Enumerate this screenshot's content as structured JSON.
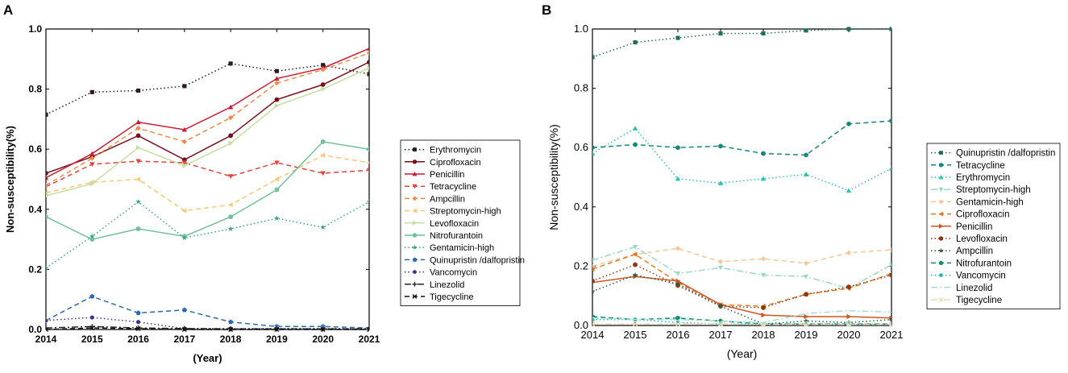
{
  "chart_data": [
    {
      "type": "line",
      "panel": "A",
      "title": "",
      "xlabel": "(Year)",
      "ylabel": "Non-susceptibility(%)",
      "x": [
        2014,
        2015,
        2016,
        2017,
        2018,
        2019,
        2020,
        2021
      ],
      "xticks": [
        "2014",
        "2015",
        "2016",
        "2017",
        "2018",
        "2019",
        "2020",
        "2021"
      ],
      "ylim": [
        0,
        1.0
      ],
      "yticks": [
        "0.0",
        "0.2",
        "0.4",
        "0.6",
        "0.8",
        "1.0"
      ],
      "legend_position": "right",
      "grid": false,
      "series": [
        {
          "name": "Erythromycin",
          "color": "#2b1a1a",
          "dash": "dot",
          "marker": "square",
          "values": [
            0.715,
            0.79,
            0.795,
            0.81,
            0.885,
            0.86,
            0.88,
            0.85
          ]
        },
        {
          "name": "Ciprofloxacin",
          "color": "#7a0f1c",
          "dash": "solid",
          "marker": "circle",
          "values": [
            0.52,
            0.575,
            0.645,
            0.565,
            0.645,
            0.765,
            0.815,
            0.89
          ]
        },
        {
          "name": "Penicillin",
          "color": "#c81e35",
          "dash": "solid",
          "marker": "triangle",
          "values": [
            0.505,
            0.585,
            0.69,
            0.665,
            0.74,
            0.835,
            0.87,
            0.935
          ]
        },
        {
          "name": "Tetracycline",
          "color": "#e2453a",
          "dash": "dash",
          "marker": "triangle-down",
          "values": [
            0.475,
            0.55,
            0.56,
            0.555,
            0.51,
            0.555,
            0.52,
            0.53
          ]
        },
        {
          "name": "Ampcillin",
          "color": "#ef8a4a",
          "dash": "dash",
          "marker": "diamond",
          "values": [
            0.48,
            0.57,
            0.67,
            0.625,
            0.705,
            0.82,
            0.865,
            0.92
          ]
        },
        {
          "name": "Streptomycin-high",
          "color": "#f7c77a",
          "dash": "dash",
          "marker": "left-triangle",
          "values": [
            0.455,
            0.49,
            0.5,
            0.395,
            0.415,
            0.5,
            0.58,
            0.555
          ]
        },
        {
          "name": "Levofloxacin",
          "color": "#c5dfa2",
          "dash": "solid",
          "marker": "right-triangle",
          "values": [
            0.445,
            0.485,
            0.605,
            0.545,
            0.62,
            0.745,
            0.8,
            0.87
          ]
        },
        {
          "name": "Nitrofurantoin",
          "color": "#72c19b",
          "dash": "solid",
          "marker": "hexagon",
          "values": [
            0.375,
            0.3,
            0.335,
            0.31,
            0.375,
            0.465,
            0.625,
            0.6
          ]
        },
        {
          "name": "Gentamicin-high",
          "color": "#3aa589",
          "dash": "dot",
          "marker": "star",
          "values": [
            0.205,
            0.31,
            0.425,
            0.305,
            0.335,
            0.37,
            0.34,
            0.425
          ]
        },
        {
          "name": "Quinupristin /dalfopristin",
          "color": "#2a6ab0",
          "dash": "dash",
          "marker": "pentagon",
          "values": [
            0.03,
            0.11,
            0.055,
            0.065,
            0.025,
            0.01,
            0.01,
            0.005
          ]
        },
        {
          "name": "Vancomycin",
          "color": "#3a3088",
          "dash": "dot",
          "marker": "circle-half",
          "values": [
            0.03,
            0.04,
            0.025,
            0.003,
            0.003,
            0.003,
            0.003,
            0.003
          ]
        },
        {
          "name": "Linezolid",
          "color": "#222222",
          "dash": "dashdot",
          "marker": "plus",
          "values": [
            0.005,
            0.01,
            0.005,
            0.003,
            0.002,
            0.002,
            0.002,
            0.002
          ]
        },
        {
          "name": "Tigecycline",
          "color": "#111111",
          "dash": "dash",
          "marker": "x",
          "values": [
            0.0,
            0.005,
            0.003,
            0.0,
            0.0,
            0.0,
            0.0,
            0.0
          ]
        }
      ]
    },
    {
      "type": "line",
      "panel": "B",
      "title": "",
      "xlabel": "(Year)",
      "ylabel": "Non-susceptibility(%)",
      "x": [
        2014,
        2015,
        2016,
        2017,
        2018,
        2019,
        2020,
        2021
      ],
      "xticks": [
        "2014",
        "2015",
        "2016",
        "2017",
        "2018",
        "2019",
        "2020",
        "2021"
      ],
      "ylim": [
        0,
        1.0
      ],
      "yticks": [
        "0.0",
        "0.2",
        "0.4",
        "0.6",
        "0.8",
        "1.0"
      ],
      "legend_position": "right",
      "grid": false,
      "series": [
        {
          "name": "Quinupristin /dalfopristin",
          "color": "#1f6e5a",
          "dash": "dot",
          "marker": "square",
          "values": [
            0.905,
            0.955,
            0.97,
            0.985,
            0.985,
            0.995,
            1.0,
            1.0
          ]
        },
        {
          "name": "Tetracycline",
          "color": "#17887a",
          "dash": "dash",
          "marker": "circle",
          "values": [
            0.6,
            0.61,
            0.6,
            0.605,
            0.58,
            0.575,
            0.68,
            0.69
          ]
        },
        {
          "name": "Erythromycin",
          "color": "#30c0b0",
          "dash": "dot",
          "marker": "triangle",
          "values": [
            0.58,
            0.665,
            0.495,
            0.48,
            0.495,
            0.51,
            0.455,
            0.53
          ]
        },
        {
          "name": "Streptomycin-high",
          "color": "#9dd8c6",
          "dash": "dashdot",
          "marker": "triangle-down",
          "values": [
            0.22,
            0.265,
            0.175,
            0.195,
            0.17,
            0.165,
            0.125,
            0.205
          ]
        },
        {
          "name": "Gentamicin-high",
          "color": "#f6c79b",
          "dash": "dash",
          "marker": "diamond",
          "values": [
            0.2,
            0.24,
            0.26,
            0.215,
            0.225,
            0.21,
            0.245,
            0.255
          ]
        },
        {
          "name": "Ciprofloxacin",
          "color": "#e07a22",
          "dash": "dash",
          "marker": "left-triangle",
          "values": [
            0.19,
            0.24,
            0.145,
            0.07,
            0.065,
            0.105,
            0.125,
            0.175
          ]
        },
        {
          "name": "Penicillin",
          "color": "#d0541f",
          "dash": "solid",
          "marker": "right-triangle",
          "values": [
            0.145,
            0.165,
            0.15,
            0.07,
            0.035,
            0.03,
            0.03,
            0.025
          ]
        },
        {
          "name": "Levofloxacin",
          "color": "#8a3b14",
          "dash": "dot",
          "marker": "hexagon",
          "values": [
            0.15,
            0.205,
            0.135,
            0.065,
            0.06,
            0.105,
            0.13,
            0.17
          ]
        },
        {
          "name": "Ampcillin",
          "color": "#2c5e3c",
          "dash": "dot",
          "marker": "star",
          "values": [
            0.115,
            0.17,
            0.14,
            0.065,
            0.005,
            0.015,
            0.01,
            0.02
          ]
        },
        {
          "name": "Nitrofurantoin",
          "color": "#138a72",
          "dash": "dash",
          "marker": "pentagon",
          "values": [
            0.03,
            0.02,
            0.025,
            0.015,
            0.005,
            0.005,
            0.005,
            0.005
          ]
        },
        {
          "name": "Vancomycin",
          "color": "#22b8a8",
          "dash": "dot",
          "marker": "circle-half",
          "values": [
            0.02,
            0.02,
            0.01,
            0.005,
            0.005,
            0.005,
            0.005,
            0.005
          ]
        },
        {
          "name": "Linezolid",
          "color": "#a6dfd2",
          "dash": "dashdot",
          "marker": "none",
          "values": [
            0.025,
            0.02,
            0.02,
            0.015,
            0.01,
            0.04,
            0.05,
            0.045
          ]
        },
        {
          "name": "Tigecycline",
          "color": "#f6d5b5",
          "dash": "dashdot",
          "marker": "x",
          "values": [
            0.005,
            0.005,
            0.005,
            0.005,
            0.003,
            0.003,
            0.003,
            0.003
          ]
        }
      ]
    }
  ]
}
